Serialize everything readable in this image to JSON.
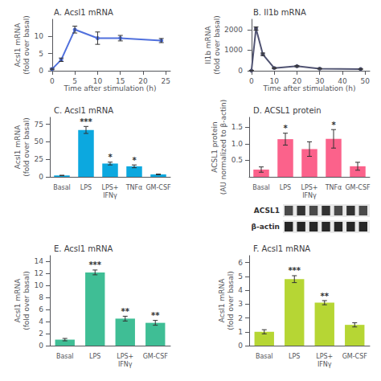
{
  "chart_data": [
    {
      "type": "line",
      "title": "A. Acsl1 mRNA",
      "xlabel": "Time after stimulation (h)",
      "ylabel": "Acsl1 mRNA\n(fold over basal)",
      "x": [
        0,
        2,
        5,
        10,
        15,
        24
      ],
      "values": [
        0.5,
        3.2,
        12.0,
        9.5,
        9.5,
        8.8
      ],
      "yerr": [
        0.2,
        0.5,
        1.0,
        1.8,
        0.8,
        0.6
      ],
      "xlim": [
        -0.5,
        26
      ],
      "ylim": [
        0,
        15
      ],
      "xticks": [
        0,
        5,
        10,
        15,
        20,
        25
      ],
      "yticks": [
        0,
        5,
        10
      ],
      "marker": "circle",
      "grid": false
    },
    {
      "type": "line",
      "title": "B. Il1b mRNA",
      "xlabel": "Time after stimulation (h)",
      "ylabel": "Il1b mRNA\n(fold over basal)",
      "x": [
        0,
        2,
        5,
        10,
        20,
        30,
        48
      ],
      "values": [
        5,
        2050,
        800,
        130,
        220,
        100,
        80
      ],
      "yerr": [
        2,
        80,
        60,
        20,
        30,
        15,
        10
      ],
      "xlim": [
        -1,
        52
      ],
      "ylim": [
        0,
        2500
      ],
      "xticks": [
        0,
        10,
        20,
        30,
        40,
        50
      ],
      "yticks": [
        0,
        1000,
        2000
      ],
      "marker": "circle",
      "grid": false
    },
    {
      "type": "bar",
      "title": "C. Acsl1 mRNA",
      "ylabel": "Acsl1 mRNA\n(fold over basal)",
      "categories": [
        "Basal",
        "LPS",
        "LPS+\nIFNγ",
        "TNFα",
        "GM-CSF"
      ],
      "values": [
        2.0,
        67.0,
        19.0,
        15.0,
        3.5
      ],
      "yerr": [
        0.3,
        5.0,
        2.0,
        2.0,
        0.5
      ],
      "stars": [
        null,
        "***",
        "*",
        "*",
        null
      ],
      "ylim": [
        0,
        85
      ],
      "yticks": [
        0,
        25,
        50,
        75
      ],
      "grid": false
    },
    {
      "type": "bar",
      "title": "D. ACSL1 protein",
      "ylabel": "ACSL1 protein\n(AU normalized to β-actin)",
      "categories": [
        "Basal",
        "LPS",
        "LPS+\nIFNγ",
        "TNFα",
        "GM-CSF"
      ],
      "values": [
        0.22,
        1.14,
        0.84,
        1.15,
        0.32
      ],
      "yerr": [
        0.08,
        0.18,
        0.22,
        0.28,
        0.12
      ],
      "stars": [
        null,
        "*",
        null,
        "*",
        null
      ],
      "ylim": [
        0,
        1.8
      ],
      "yticks": [
        0.5,
        {
          "value": 1.0,
          "label": "1.0"
        },
        1.5
      ],
      "grid": false
    },
    {
      "type": "blot",
      "annotations": [
        "ACSL1",
        "β-actin"
      ]
    },
    {
      "type": "bar",
      "title": "E. Acsl1 mRNA",
      "ylabel": "Acsl1 mRNA\n(fold over basal)",
      "categories": [
        "Basal",
        "LPS",
        "LPS+\nIFNγ",
        "GM-CSF"
      ],
      "values": [
        1.0,
        12.2,
        4.5,
        3.8
      ],
      "yerr": [
        0.2,
        0.4,
        0.4,
        0.4
      ],
      "stars": [
        null,
        "***",
        "**",
        "**"
      ],
      "ylim": [
        0,
        15
      ],
      "yticks": [
        0,
        2,
        4,
        6,
        8,
        10,
        12,
        14
      ],
      "grid": false
    },
    {
      "type": "bar",
      "title": "F. Acsl1 mRNA",
      "ylabel": "Acsl1 mRNA\n(fold over basal)",
      "categories": [
        "Basal",
        "LPS",
        "LPS+\nIFNγ",
        "GM-CSF"
      ],
      "values": [
        1.0,
        4.8,
        3.1,
        1.5
      ],
      "yerr": [
        0.15,
        0.25,
        0.15,
        0.15
      ],
      "stars": [
        null,
        "***",
        "**",
        null
      ],
      "ylim": [
        0,
        6.5
      ],
      "yticks": [
        0,
        1,
        2,
        3,
        4,
        5,
        6
      ],
      "grid": false
    }
  ]
}
